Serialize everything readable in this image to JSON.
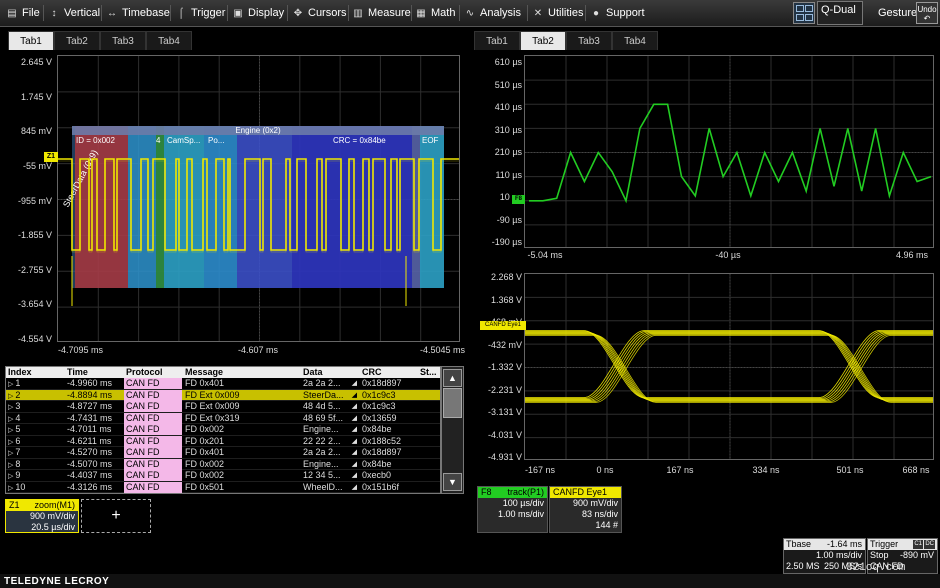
{
  "menu": {
    "items": [
      {
        "label": "File",
        "icon": "file-icon"
      },
      {
        "label": "Vertical",
        "icon": "vertical-icon"
      },
      {
        "label": "Timebase",
        "icon": "timebase-icon"
      },
      {
        "label": "Trigger",
        "icon": "trigger-icon"
      },
      {
        "label": "Display",
        "icon": "display-icon"
      },
      {
        "label": "Cursors",
        "icon": "cursors-icon"
      },
      {
        "label": "Measure",
        "icon": "measure-icon"
      },
      {
        "label": "Math",
        "icon": "math-icon"
      },
      {
        "label": "Analysis",
        "icon": "analysis-icon"
      },
      {
        "label": "Utilities",
        "icon": "utilities-icon"
      },
      {
        "label": "Support",
        "icon": "support-icon"
      }
    ],
    "display_mode": "Q-Dual",
    "gesture_label": "Gesture",
    "undo_label": "Undo"
  },
  "left_tabs": [
    "Tab1",
    "Tab2",
    "Tab3",
    "Tab4"
  ],
  "left_tabs_active": "Tab1",
  "right_tabs": [
    "Tab1",
    "Tab2",
    "Tab3",
    "Tab4"
  ],
  "right_tabs_active": "Tab2",
  "left_grid": {
    "y_labels": [
      "2.645 V",
      "1.745 V",
      "845 mV",
      "-55 mV",
      "-955 mV",
      "-1.855 V",
      "-2.755 V",
      "-3.654 V",
      "-4.554 V"
    ],
    "x_labels": [
      "-4.7095 ms",
      "-4.607 ms",
      "-4.5045 ms"
    ],
    "trace_marker": "Z1",
    "decode_header": "Engine (0x2)",
    "decode_fields": [
      "ID = 0x002",
      "4",
      "CamSp...",
      "Po...",
      "CRC = 0x84be",
      "EOF"
    ],
    "steer_label": "SteerData (0x9)"
  },
  "track_grid": {
    "y_labels": [
      "610 µs",
      "510 µs",
      "410 µs",
      "310 µs",
      "210 µs",
      "110 µs",
      "10 µs",
      "-90 µs",
      "-190 µs"
    ],
    "x_labels": [
      "-5.04 ms",
      "-40 µs",
      "4.96 ms"
    ],
    "trace_marker": "F8",
    "levels": [
      10,
      10,
      20,
      210,
      90,
      210,
      130,
      10,
      310,
      410,
      410,
      110,
      30,
      310,
      110,
      210,
      30,
      210,
      90,
      210,
      50,
      310,
      70,
      310,
      50,
      310,
      30,
      210,
      90,
      110
    ]
  },
  "eye_grid": {
    "y_labels": [
      "2.268 V",
      "1.368 V",
      "468 mV",
      "-432 mV",
      "-1.332 V",
      "-2.231 V",
      "-3.131 V",
      "-4.031 V",
      "-4.931 V"
    ],
    "x_labels": [
      "-167 ns",
      "0 ns",
      "167 ns",
      "334 ns",
      "501 ns",
      "668 ns"
    ],
    "trace_marker": "CANFD Eye1"
  },
  "table": {
    "headers": [
      "Index",
      "Time",
      "Protocol",
      "Message",
      "Data",
      "CRC",
      "St..."
    ],
    "rows": [
      {
        "index": "1",
        "time": "-4.9960 ms",
        "protocol": "CAN FD",
        "message": "FD 0x401",
        "data": "2a 2a 2...",
        "crc": "0x18d897",
        "selected": false
      },
      {
        "index": "2",
        "time": "-4.8894 ms",
        "protocol": "CAN FD",
        "message": "FD Ext 0x009",
        "data": "SteerDa...",
        "crc": "0x1c9c3",
        "selected": true
      },
      {
        "index": "3",
        "time": "-4.8727 ms",
        "protocol": "CAN FD",
        "message": "FD Ext 0x009",
        "data": "48 4d 5...",
        "crc": "0x1c9c3",
        "selected": false
      },
      {
        "index": "4",
        "time": "-4.7431 ms",
        "protocol": "CAN FD",
        "message": "FD Ext 0x319",
        "data": "48 69 5f...",
        "crc": "0x13659",
        "selected": false
      },
      {
        "index": "5",
        "time": "-4.7011 ms",
        "protocol": "CAN FD",
        "message": "FD 0x002",
        "data": "Engine...",
        "crc": "0x84be",
        "selected": false
      },
      {
        "index": "6",
        "time": "-4.6211 ms",
        "protocol": "CAN FD",
        "message": "FD 0x201",
        "data": "22 22 2...",
        "crc": "0x188c52",
        "selected": false
      },
      {
        "index": "7",
        "time": "-4.5270 ms",
        "protocol": "CAN FD",
        "message": "FD 0x401",
        "data": "2a 2a 2...",
        "crc": "0x18d897",
        "selected": false
      },
      {
        "index": "8",
        "time": "-4.5070 ms",
        "protocol": "CAN FD",
        "message": "FD 0x002",
        "data": "Engine...",
        "crc": "0x84be",
        "selected": false
      },
      {
        "index": "9",
        "time": "-4.4037 ms",
        "protocol": "CAN FD",
        "message": "FD 0x002",
        "data": "12 34 5...",
        "crc": "0xecb0",
        "selected": false
      },
      {
        "index": "10",
        "time": "-4.3126 ms",
        "protocol": "CAN FD",
        "message": "FD 0x501",
        "data": "WheelD...",
        "crc": "0x151b6f",
        "selected": false
      }
    ]
  },
  "descriptors": {
    "z1": {
      "name": "Z1",
      "title": "zoom(M1)",
      "line1": "900 mV/div",
      "line2": "20.5 µs/div"
    },
    "add_label": "+",
    "f8": {
      "name": "F8",
      "title": "track(P1)",
      "line1": "100 µs/div",
      "line2": "1.00 ms/div"
    },
    "eye": {
      "name": "CANFD Eye1",
      "line1": "900 mV/div",
      "line2": "83 ns/div",
      "line3": "144 #"
    },
    "tbase": {
      "label": "Tbase",
      "delay": "-1.64 ms",
      "line1": "1.00 ms/div",
      "samples": "2.50 MS",
      "rate": "250 MS/s"
    },
    "trigger": {
      "label": "Trigger",
      "badge1": "C1",
      "badge2": "DC",
      "mode": "Stop",
      "level": "-890 mV",
      "type": "CAN FD"
    }
  },
  "colors": {
    "yellow_trace": "#f0e800",
    "green_trace": "#22cc22",
    "protocol_pink": "#f4b8e8",
    "selected_row": "#c8c000"
  },
  "brand": "TELEDYNE LECROY",
  "watermark": "321cq.com"
}
